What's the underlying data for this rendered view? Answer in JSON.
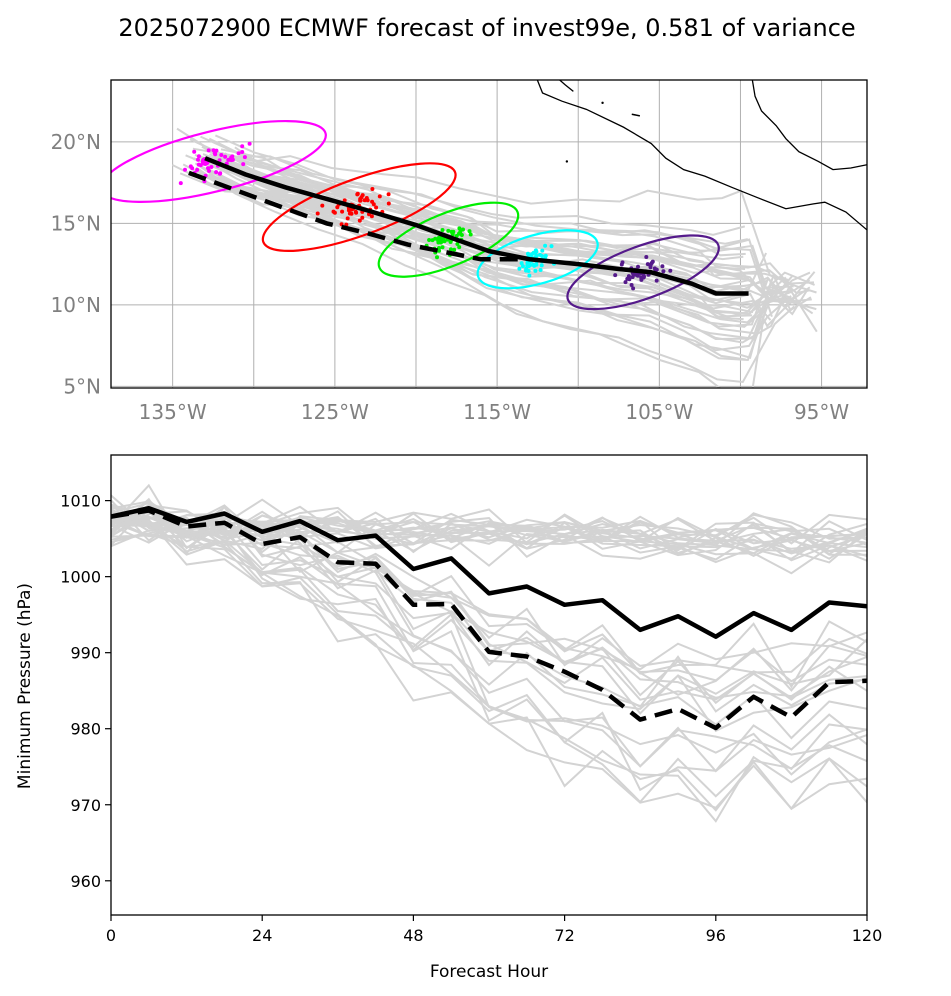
{
  "figure": {
    "title": "2025072900 ECMWF forecast of invest99e, 0.581 of variance"
  },
  "chart_data": [
    {
      "type": "map-track",
      "x_ticks": [
        -135,
        -125,
        -115,
        -105,
        -95
      ],
      "x_tick_labels": [
        "135°W",
        "125°W",
        "115°W",
        "105°W",
        "95°W"
      ],
      "y_ticks": [
        5,
        10,
        15,
        20
      ],
      "y_tick_labels": [
        "5°N",
        "10°N",
        "15°N",
        "20°N"
      ],
      "xlim": [
        -138.8,
        -92.2
      ],
      "ylim": [
        4.9,
        23.8
      ],
      "grid": true,
      "colors": {
        "ensemble": "#d3d3d3",
        "mean": "#000000",
        "coastline": "#000000",
        "ellipses": [
          "#ff00ff",
          "#ff0000",
          "#00ee00",
          "#00ffff",
          "#551a8b"
        ]
      },
      "mean_track": [
        [
          -133.0,
          19.0
        ],
        [
          -130.5,
          18.0
        ],
        [
          -128.0,
          17.2
        ],
        [
          -125.5,
          16.5
        ],
        [
          -123.0,
          15.8
        ],
        [
          -120.0,
          14.9
        ],
        [
          -117.5,
          14.0
        ],
        [
          -115.5,
          13.3
        ],
        [
          -113.0,
          12.8
        ],
        [
          -110.0,
          12.5
        ],
        [
          -107.5,
          12.2
        ],
        [
          -105.5,
          12.0
        ],
        [
          -103.0,
          11.3
        ],
        [
          -101.5,
          10.7
        ],
        [
          -99.5,
          10.7
        ]
      ],
      "second_track": [
        [
          -134.0,
          18.1
        ],
        [
          -131.0,
          17.0
        ],
        [
          -128.0,
          15.9
        ],
        [
          -125.5,
          15.0
        ],
        [
          -123.0,
          14.4
        ],
        [
          -120.5,
          13.7
        ],
        [
          -118.0,
          13.2
        ],
        [
          -116.0,
          12.8
        ],
        [
          -113.5,
          12.8
        ]
      ],
      "ellipses": [
        {
          "cx": -132.5,
          "cy": 18.8,
          "rx": 8.4,
          "ry": 1.6,
          "angle": -14,
          "color": "#ff00ff"
        },
        {
          "cx": -123.5,
          "cy": 16.0,
          "rx": 7.4,
          "ry": 1.5,
          "angle": -20,
          "color": "#ff0000"
        },
        {
          "cx": -118.0,
          "cy": 14.0,
          "rx": 5.4,
          "ry": 1.4,
          "angle": -22,
          "color": "#00ee00"
        },
        {
          "cx": -112.5,
          "cy": 12.8,
          "rx": 4.5,
          "ry": 1.3,
          "angle": -16,
          "color": "#00ffff"
        },
        {
          "cx": -106.0,
          "cy": 12.0,
          "rx": 5.8,
          "ry": 1.4,
          "angle": -20,
          "color": "#551a8b"
        }
      ]
    },
    {
      "type": "line",
      "xlabel": "Forecast Hour",
      "ylabel": "Minimum Pressure (hPa)",
      "x_ticks": [
        0,
        24,
        48,
        72,
        96,
        120
      ],
      "y_ticks": [
        960,
        970,
        980,
        990,
        1000,
        1010
      ],
      "xlim": [
        0,
        120
      ],
      "ylim": [
        955.5,
        1016
      ],
      "x": [
        0,
        6,
        12,
        18,
        24,
        30,
        36,
        42,
        48,
        54,
        60,
        66,
        72,
        78,
        84,
        90,
        96,
        102,
        108,
        114,
        120
      ],
      "series": [
        {
          "style": "solid",
          "color": "#000000",
          "values": [
            1007.9,
            1009.0,
            1007.2,
            1008.3,
            1005.9,
            1007.3,
            1004.8,
            1005.4,
            1001.0,
            1002.4,
            997.8,
            998.7,
            996.3,
            996.9,
            993.0,
            994.8,
            992.1,
            995.2,
            993.0,
            996.6,
            996.1
          ]
        },
        {
          "style": "dashed",
          "color": "#000000",
          "values": [
            1007.9,
            1008.7,
            1006.6,
            1007.1,
            1004.3,
            1005.2,
            1001.9,
            1001.7,
            996.3,
            996.4,
            990.1,
            989.5,
            987.5,
            985.1,
            981.2,
            982.6,
            980.1,
            984.2,
            981.5,
            986.1,
            986.3
          ]
        }
      ]
    }
  ]
}
